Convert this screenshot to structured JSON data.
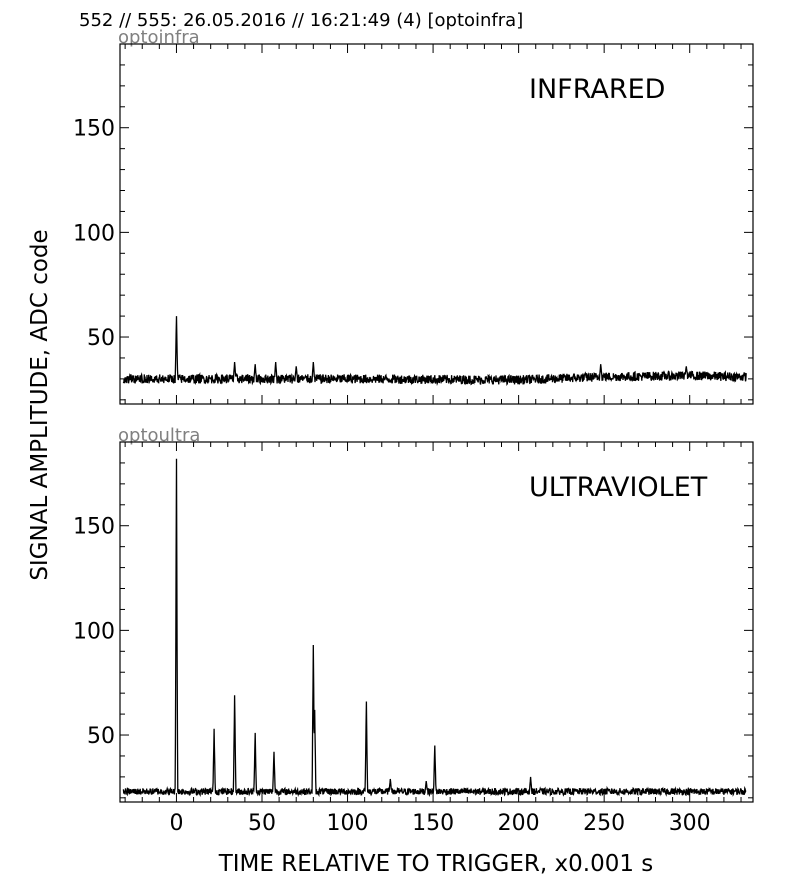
{
  "header": {
    "title": "552 // 555:   26.05.2016 // 16:21:49 (4)  [optoinfra]"
  },
  "axes": {
    "ylabel": "SIGNAL AMPLITUDE,  ADC code",
    "xlabel": "TIME RELATIVE TO TRIGGER,   x0.001 s"
  },
  "colors": {
    "trace": "#000000",
    "corner_label": "#808080",
    "frame": "#000000"
  },
  "chart_data": [
    {
      "type": "line",
      "id": "infra",
      "corner_label": "optoinfra",
      "panel_label": "INFRARED",
      "xlim": [
        -33,
        337
      ],
      "ylim": [
        18,
        190
      ],
      "xticks": [
        0,
        50,
        100,
        150,
        200,
        250,
        300
      ],
      "xtick_labels": [
        "",
        "",
        "",
        "",
        "",
        "",
        ""
      ],
      "yticks": [
        50,
        100,
        150
      ],
      "ytick_labels": [
        "50",
        "100",
        "150"
      ],
      "baseline": 30,
      "noise": 2.2,
      "drift": [
        [
          -33,
          30
        ],
        [
          100,
          30
        ],
        [
          200,
          29.5
        ],
        [
          250,
          31
        ],
        [
          300,
          31.5
        ],
        [
          333,
          31
        ]
      ],
      "peaks": [
        [
          0,
          60
        ],
        [
          34,
          38
        ],
        [
          46,
          37
        ],
        [
          58,
          38
        ],
        [
          70,
          36
        ],
        [
          80,
          38
        ],
        [
          248,
          37
        ],
        [
          298,
          36
        ]
      ]
    },
    {
      "type": "line",
      "id": "ultra",
      "corner_label": "optoultra",
      "panel_label": "ULTRAVIOLET",
      "xlim": [
        -33,
        337
      ],
      "ylim": [
        18,
        190
      ],
      "xticks": [
        0,
        50,
        100,
        150,
        200,
        250,
        300
      ],
      "xtick_labels": [
        "0",
        "50",
        "100",
        "150",
        "200",
        "250",
        "300"
      ],
      "yticks": [
        50,
        100,
        150
      ],
      "ytick_labels": [
        "50",
        "100",
        "150"
      ],
      "baseline": 23,
      "noise": 1.6,
      "drift": [
        [
          -33,
          23
        ],
        [
          333,
          23
        ]
      ],
      "peaks": [
        [
          0,
          182
        ],
        [
          22,
          53
        ],
        [
          34,
          69
        ],
        [
          46,
          51
        ],
        [
          57,
          42
        ],
        [
          80,
          93
        ],
        [
          80.8,
          62
        ],
        [
          111,
          66
        ],
        [
          151,
          45
        ],
        [
          125,
          29
        ],
        [
          207,
          30
        ],
        [
          146,
          28
        ]
      ]
    }
  ]
}
